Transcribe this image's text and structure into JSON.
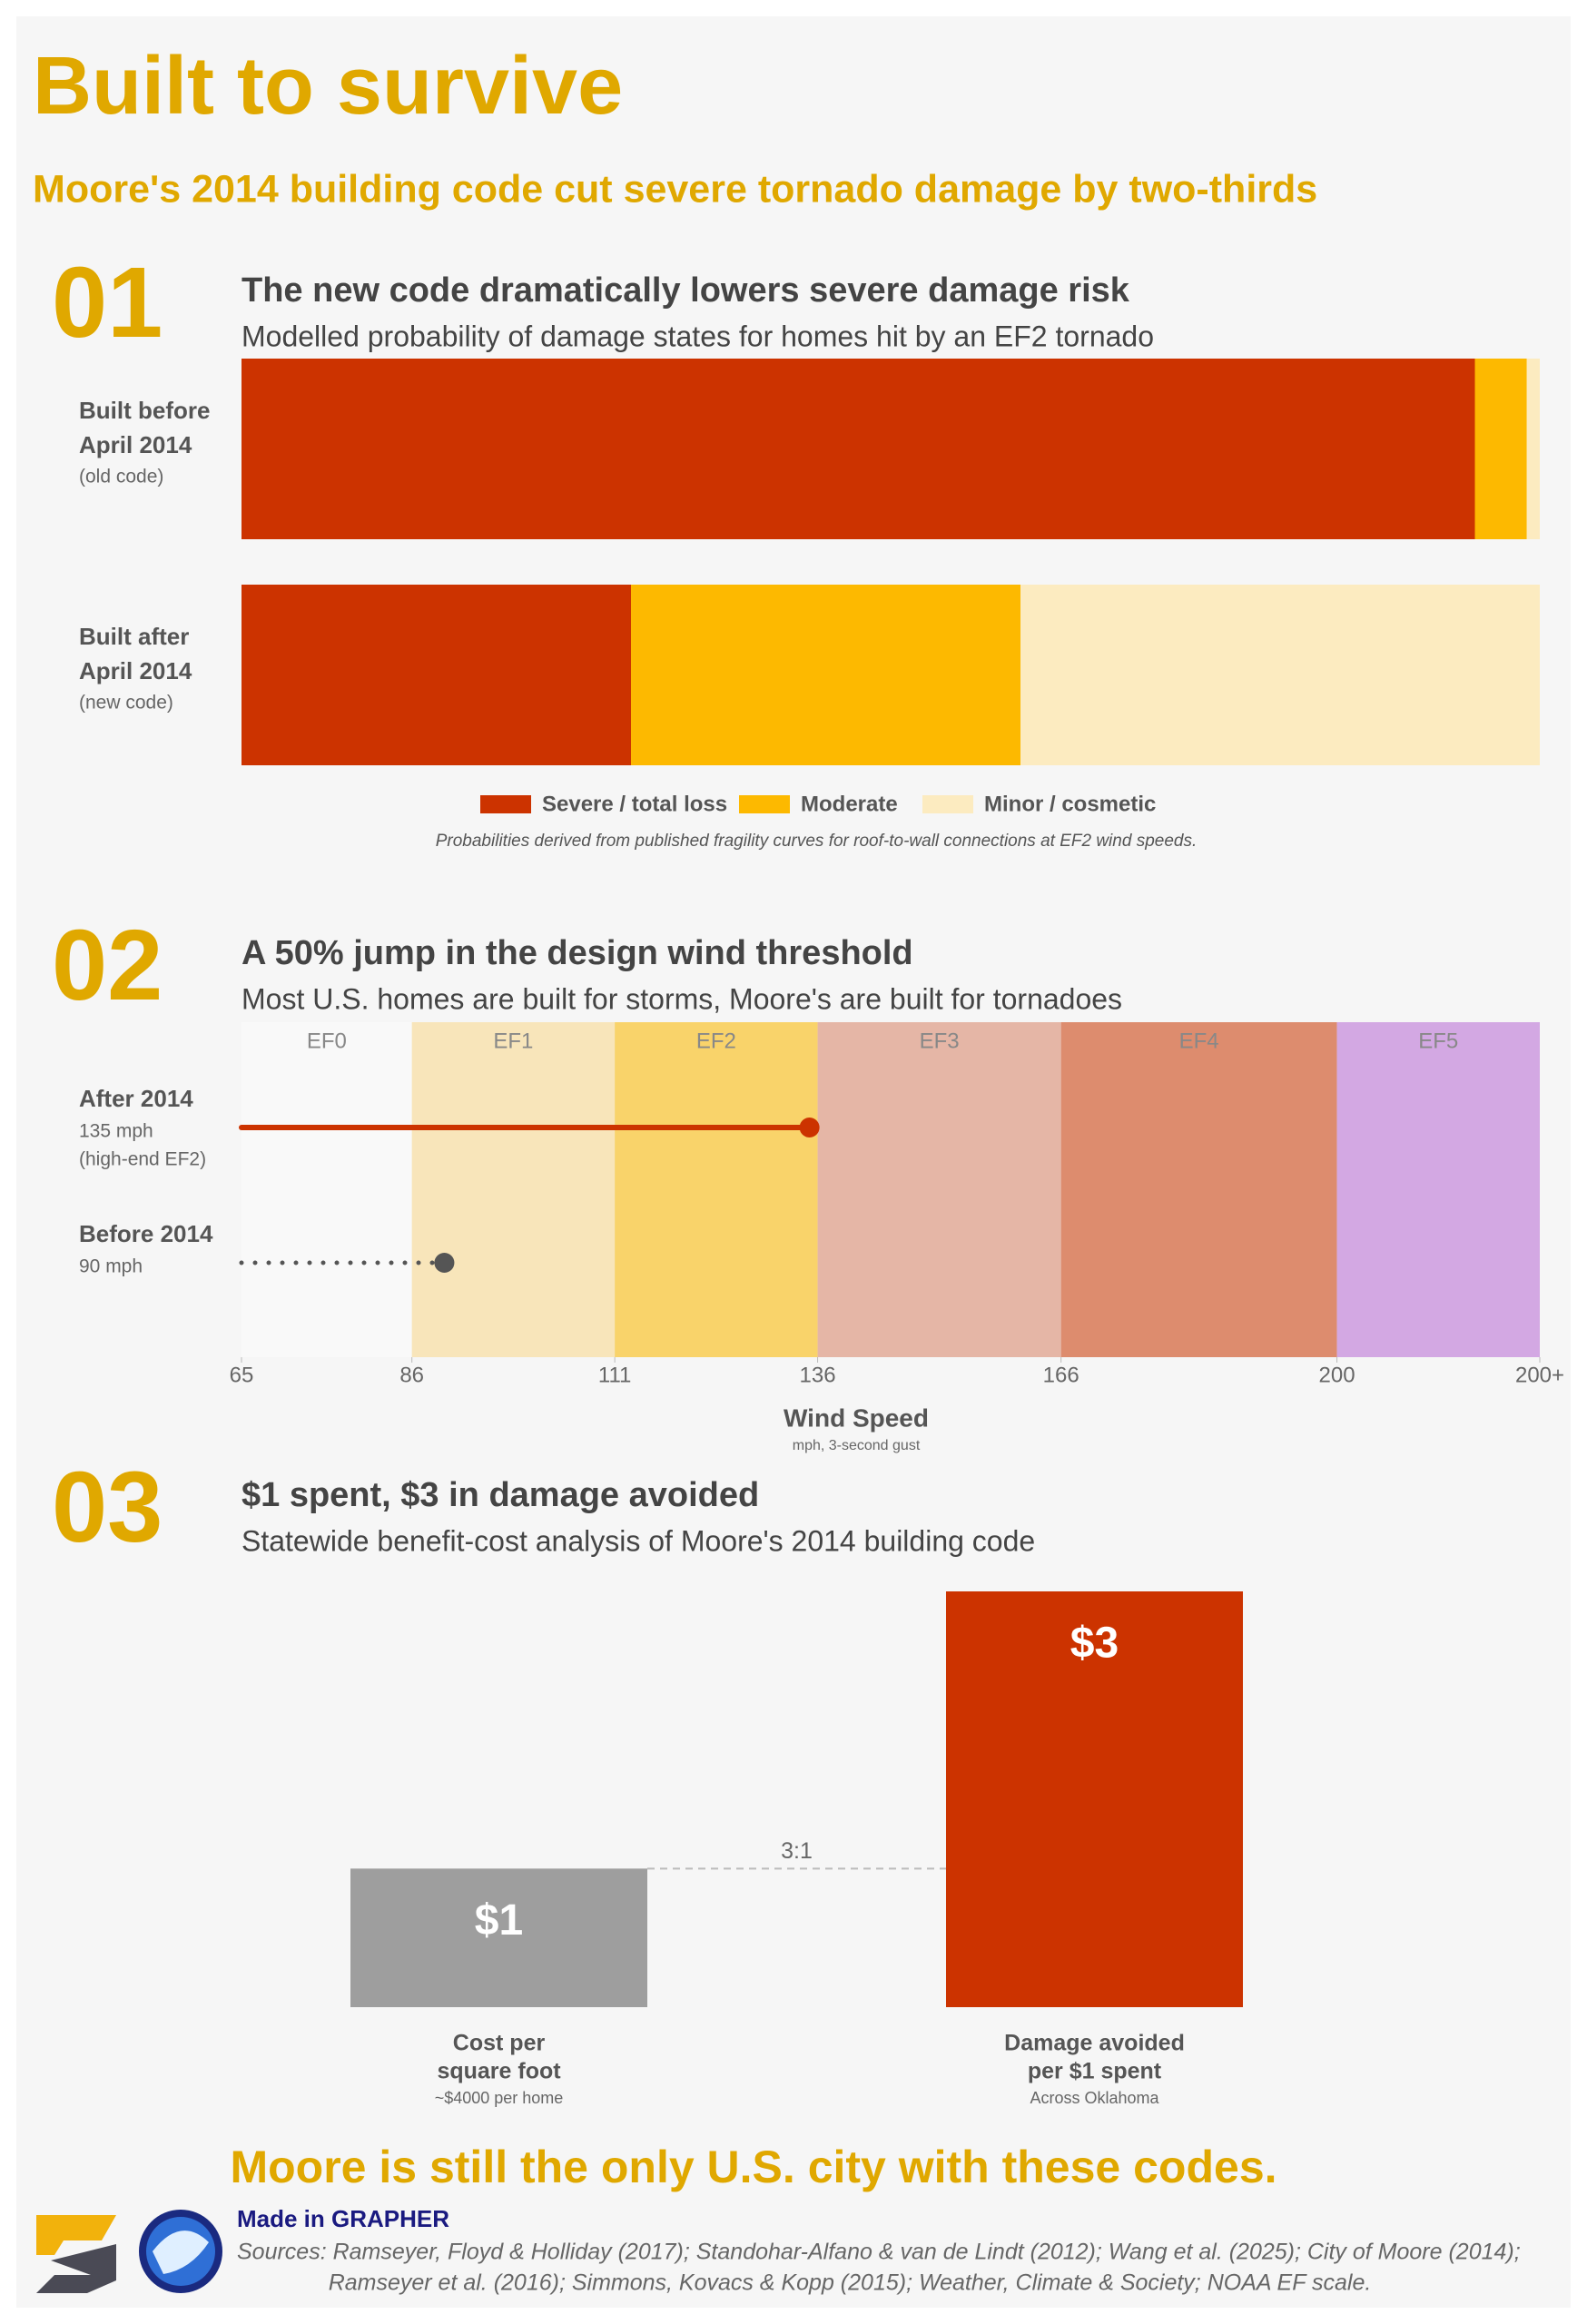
{
  "header": {
    "title": "Built to survive",
    "subtitle": "Moore's 2014 building code cut severe tornado damage by two-thirds"
  },
  "chart_data": [
    {
      "type": "stacked-bar",
      "number": "01",
      "title": "The new code dramatically lowers severe damage risk",
      "subtitle": "Modelled probability of damage states for homes hit by an EF2 tornado",
      "categories": [
        [
          "Built before",
          "April 2014"
        ],
        [
          "Built after",
          "April 2014"
        ]
      ],
      "category_notes": [
        "(old code)",
        "(new code)"
      ],
      "series": [
        {
          "name": "Severe / total loss",
          "color": "#cc3300",
          "values": [
            95,
            30
          ]
        },
        {
          "name": "Moderate",
          "color": "#fdb900",
          "values": [
            4,
            30
          ]
        },
        {
          "name": "Minor / cosmetic",
          "color": "#fcebc0",
          "values": [
            1,
            40
          ]
        }
      ],
      "xlim": [
        0,
        100
      ],
      "note": "Probabilities derived from published fragility curves for roof-to-wall connections at EF2 wind speeds."
    },
    {
      "type": "dot",
      "number": "02",
      "title": "A 50% jump in the design wind threshold",
      "subtitle": "Most U.S. homes are built for storms, Moore's are built for tornadoes",
      "categories": [
        "After 2014",
        "Before 2014"
      ],
      "values": [
        135,
        90
      ],
      "value_labels": [
        "135 mph",
        "90 mph"
      ],
      "category_notes": [
        "(high-end EF2)",
        null
      ],
      "colors": [
        "#cc3300",
        "#555555"
      ],
      "line_styles": [
        "solid",
        "dotted"
      ],
      "bands": [
        {
          "label": "EF0",
          "from": 65,
          "to": 86,
          "color": "#f9f9f9"
        },
        {
          "label": "EF1",
          "from": 86,
          "to": 111,
          "color": "#f8e5ba"
        },
        {
          "label": "EF2",
          "from": 111,
          "to": 136,
          "color": "#f9d36a"
        },
        {
          "label": "EF3",
          "from": 136,
          "to": 166,
          "color": "#e5b6a6"
        },
        {
          "label": "EF4",
          "from": 166,
          "to": 200,
          "color": "#dd8c6e"
        },
        {
          "label": "EF5",
          "from": 200,
          "to": 225,
          "color": "#d3a8e3"
        }
      ],
      "xlim": [
        65,
        225
      ],
      "xticks": [
        65,
        86,
        111,
        136,
        166,
        200,
        {
          "value": 225,
          "label": "200+"
        }
      ],
      "xlabel": "Wind Speed",
      "xlabel_note": "mph, 3-second gust"
    },
    {
      "type": "bar",
      "number": "03",
      "title": "$1 spent, $3 in damage avoided",
      "subtitle": "Statewide benefit-cost analysis of Moore's 2014 building code",
      "categories": [
        [
          "Cost per",
          "square foot"
        ],
        [
          "Damage avoided",
          "per $1 spent"
        ]
      ],
      "category_notes": [
        "~$4000 per home",
        "Across Oklahoma"
      ],
      "values": [
        1,
        3
      ],
      "value_labels": [
        "$1",
        "$3"
      ],
      "colors": [
        "#9e9e9e",
        "#cc3300"
      ],
      "ylim": [
        0,
        3
      ],
      "annotation": "3:1"
    }
  ],
  "footer": {
    "tagline": "Moore is still the only U.S. city with these codes.",
    "made_in": "Made in GRAPHER",
    "sources": [
      "Sources: Ramseyer, Floyd & Holliday (2017); Standohar-Alfano & van de Lindt (2012); Wang et al. (2025); City of Moore (2014);",
      "Ramseyer et al. (2016); Simmons, Kovacs & Kopp (2015); Weather, Climate & Society; NOAA EF scale."
    ]
  }
}
